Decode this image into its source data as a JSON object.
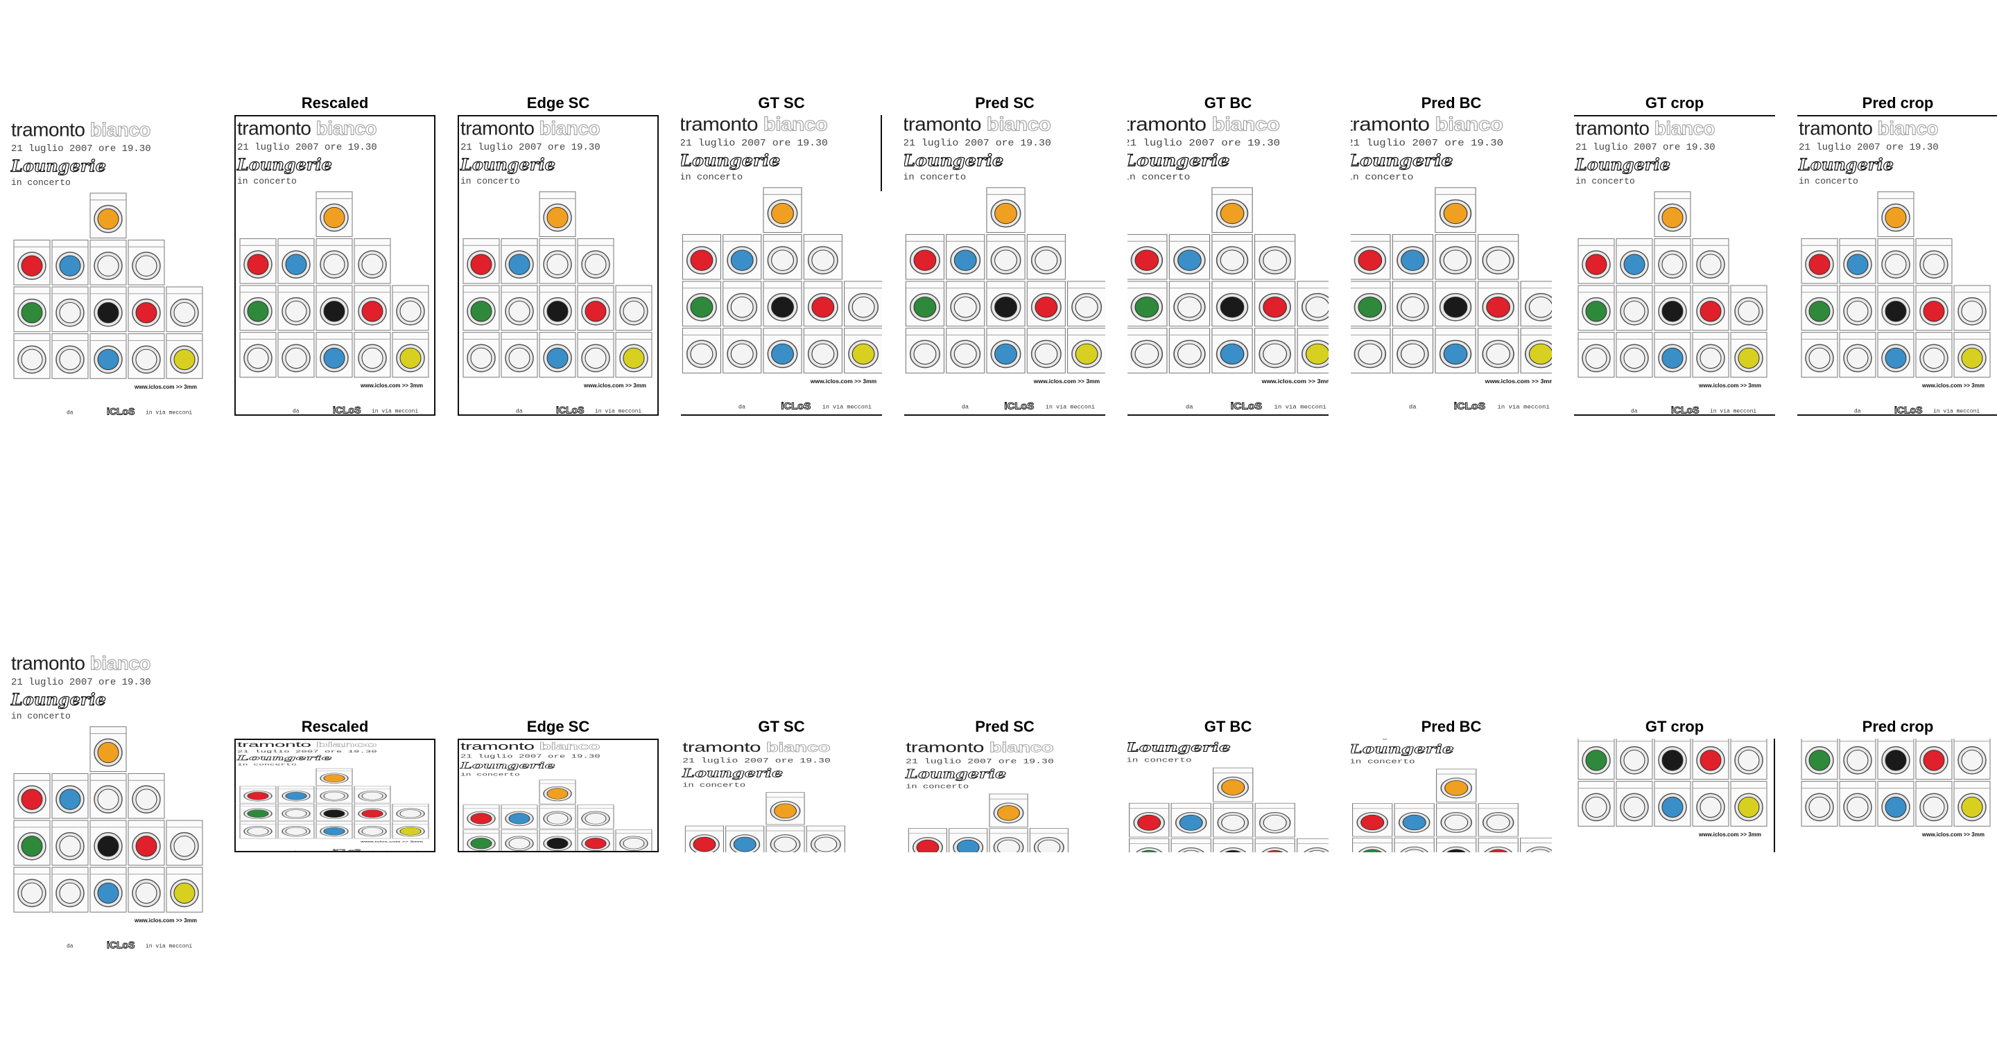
{
  "poster": {
    "title_word1": "tramonto",
    "title_word2": "bianco",
    "date_line": "21 luglio 2007 ore 19.30",
    "band": "Loungerie",
    "subtitle": "in concerto",
    "footer_left": "da",
    "footer_logo": "iCLoS",
    "footer_right": "in via mecconi",
    "website": "www.iclos.com >> 3mm"
  },
  "panel_labels": [
    "Rescaled",
    "Edge SC",
    "GT SC",
    "Pred SC",
    "GT BC",
    "Pred BC",
    "GT crop",
    "Pred crop"
  ],
  "colors": {
    "red": "#e0202a",
    "blue": "#3a8fc8",
    "yellow": "#d8d020",
    "orange": "#f0a020",
    "green": "#2e8a3a",
    "black": "#1a1a1a",
    "white": "#f4f4f4"
  }
}
